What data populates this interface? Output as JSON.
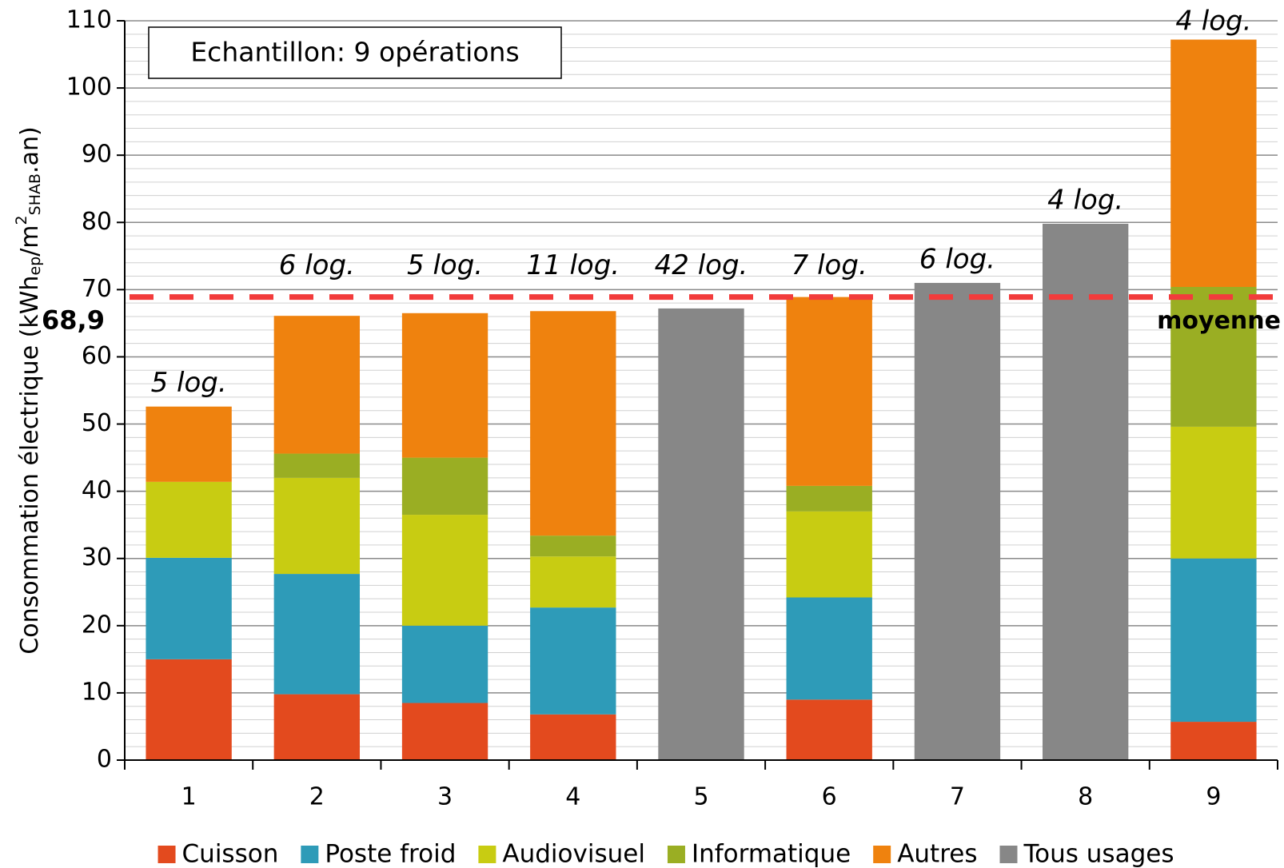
{
  "chart_data": {
    "type": "stacked_bar",
    "y_label": [
      {
        "text": "Consommation électrique (kWh"
      },
      {
        "text": "ep",
        "style": "sub"
      },
      {
        "text": "/m"
      },
      {
        "text": "2",
        "style": "sup"
      },
      {
        "text": "SHAB",
        "style": "sub"
      },
      {
        "text": ".an)"
      }
    ],
    "box_text": "Echantillon: 9 opérations",
    "categories": [
      "1",
      "2",
      "3",
      "4",
      "5",
      "6",
      "7",
      "8",
      "9"
    ],
    "annotations": [
      "5 log.",
      "6 log.",
      "5 log.",
      "11 log.",
      "42 log.",
      "7 log.",
      "6 log.",
      "4 log.",
      "4 log."
    ],
    "series": [
      {
        "name": "Cuisson",
        "color": "#e34a1e",
        "values": [
          15,
          9.8,
          8.5,
          6.8,
          null,
          9,
          null,
          null,
          5.7
        ]
      },
      {
        "name": "Poste froid",
        "color": "#2e9bb8",
        "values": [
          15.1,
          17.9,
          11.5,
          15.9,
          null,
          15.2,
          null,
          null,
          24.3
        ]
      },
      {
        "name": "Audiovisuel",
        "color": "#c8cc12",
        "values": [
          11.3,
          14.3,
          16.5,
          7.6,
          null,
          12.8,
          null,
          null,
          19.6
        ]
      },
      {
        "name": "Informatique",
        "color": "#9aae23",
        "values": [
          null,
          3.6,
          8.5,
          3.1,
          null,
          3.8,
          null,
          null,
          20.8
        ]
      },
      {
        "name": "Autres",
        "color": "#ef820e",
        "values": [
          11.2,
          20.5,
          21.5,
          33.4,
          null,
          28.1,
          null,
          null,
          36.8
        ]
      },
      {
        "name": "Tous usages",
        "color": "#878787",
        "values": [
          null,
          null,
          null,
          null,
          67.2,
          null,
          71,
          79.8,
          null
        ]
      }
    ],
    "average": {
      "value": 68.9,
      "label": "68,9",
      "text": "moyenne",
      "color": "#f23c3c"
    },
    "ylim": [
      0,
      110
    ],
    "yticks": [
      0,
      10,
      20,
      30,
      40,
      50,
      60,
      70,
      80,
      90,
      100,
      110
    ],
    "minor_grid_step": 2,
    "grid": true,
    "legend": "bottom"
  }
}
